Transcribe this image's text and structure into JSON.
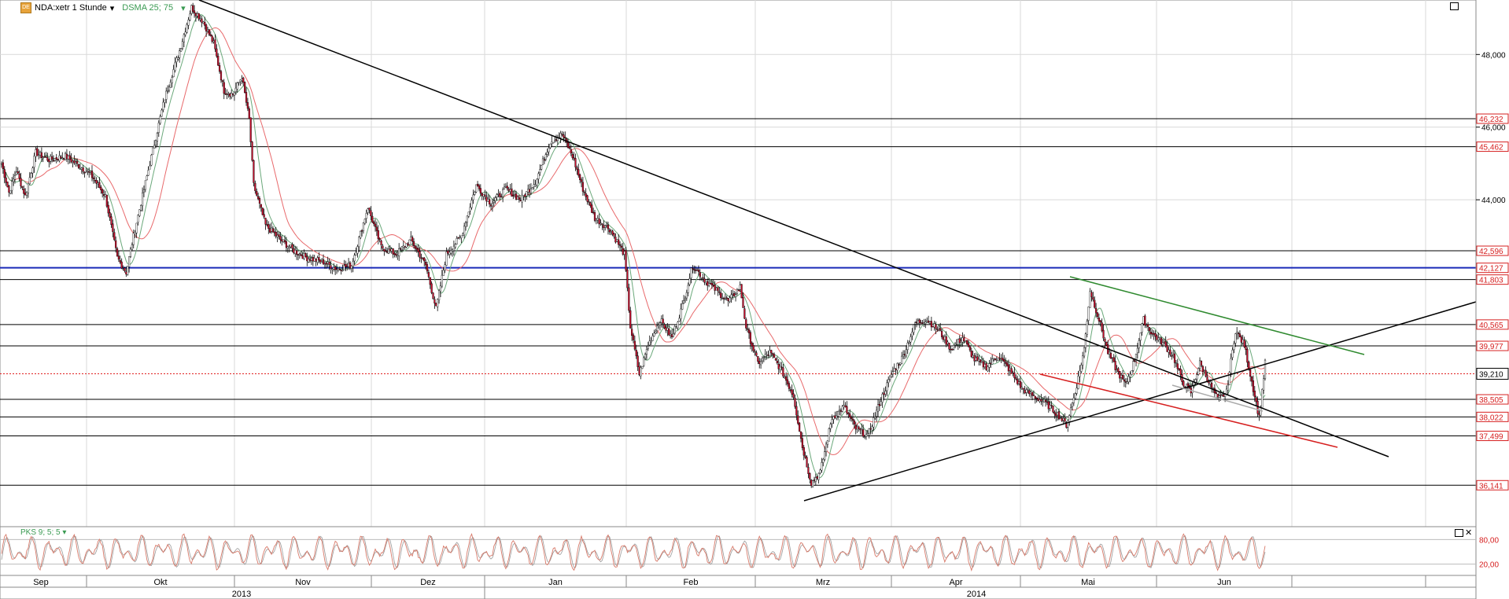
{
  "header": {
    "logo_text": "DE",
    "symbol": "NDA:xetr 1 Stunde",
    "indicator": "DSMA 25; 75",
    "sub_indicator": "PKS 9; 5; 5"
  },
  "colors": {
    "up_candle": "#ffffff",
    "down_candle": "#c8102e",
    "sma_fast": "#6aa87a",
    "sma_slow": "#e8696b",
    "oscillator": "#d87a6a",
    "blue_line": "#1a2ab8",
    "green_trend": "#2f8a2f",
    "red_trend": "#d62020",
    "current_line": "#e02020"
  },
  "chart_data": {
    "type": "candlestick",
    "ylim": [
      35000,
      49500
    ],
    "y_ticks": [
      {
        "value": 48000,
        "label": "48,000"
      },
      {
        "value": 46000,
        "label": "46,000"
      },
      {
        "value": 44000,
        "label": "44,000"
      }
    ],
    "horizontal_levels": [
      {
        "value": 46232,
        "label": "46,232",
        "color": "#000000"
      },
      {
        "value": 45462,
        "label": "45,462",
        "color": "#000000"
      },
      {
        "value": 42596,
        "label": "42,596",
        "color": "#000000"
      },
      {
        "value": 42127,
        "label": "42,127",
        "color": "#1a2ab8"
      },
      {
        "value": 41803,
        "label": "41,803",
        "color": "#000000"
      },
      {
        "value": 40565,
        "label": "40,565",
        "color": "#000000"
      },
      {
        "value": 39977,
        "label": "39,977",
        "color": "#000000"
      },
      {
        "value": 38505,
        "label": "38,505",
        "color": "#000000"
      },
      {
        "value": 38022,
        "label": "38,022",
        "color": "#000000"
      },
      {
        "value": 37499,
        "label": "37,499",
        "color": "#000000"
      },
      {
        "value": 36141,
        "label": "36,141",
        "color": "#000000"
      }
    ],
    "current_price": {
      "value": 39210,
      "label": "39,210"
    },
    "months": [
      "Sep",
      "Okt",
      "Nov",
      "Dez",
      "Jan",
      "Feb",
      "Mrz",
      "Apr",
      "Mai",
      "Jun"
    ],
    "years": [
      "2013",
      "2014"
    ],
    "key_prices": [
      {
        "t": 0,
        "v": 45000
      },
      {
        "t": 5,
        "v": 44200
      },
      {
        "t": 10,
        "v": 44800
      },
      {
        "t": 16,
        "v": 44100
      },
      {
        "t": 23,
        "v": 45300
      },
      {
        "t": 32,
        "v": 45100
      },
      {
        "t": 43,
        "v": 45200
      },
      {
        "t": 50,
        "v": 45000
      },
      {
        "t": 60,
        "v": 44700
      },
      {
        "t": 70,
        "v": 44100
      },
      {
        "t": 78,
        "v": 42400
      },
      {
        "t": 84,
        "v": 42000
      },
      {
        "t": 90,
        "v": 43200
      },
      {
        "t": 100,
        "v": 45000
      },
      {
        "t": 110,
        "v": 46800
      },
      {
        "t": 120,
        "v": 48100
      },
      {
        "t": 128,
        "v": 49300
      },
      {
        "t": 136,
        "v": 48900
      },
      {
        "t": 143,
        "v": 48300
      },
      {
        "t": 150,
        "v": 47000
      },
      {
        "t": 156,
        "v": 46900
      },
      {
        "t": 162,
        "v": 47400
      },
      {
        "t": 167,
        "v": 46200
      },
      {
        "t": 170,
        "v": 44400
      },
      {
        "t": 178,
        "v": 43300
      },
      {
        "t": 188,
        "v": 42900
      },
      {
        "t": 197,
        "v": 42600
      },
      {
        "t": 206,
        "v": 42400
      },
      {
        "t": 216,
        "v": 42300
      },
      {
        "t": 226,
        "v": 42100
      },
      {
        "t": 236,
        "v": 42200
      },
      {
        "t": 247,
        "v": 43800
      },
      {
        "t": 256,
        "v": 42700
      },
      {
        "t": 266,
        "v": 42500
      },
      {
        "t": 276,
        "v": 42900
      },
      {
        "t": 286,
        "v": 42200
      },
      {
        "t": 293,
        "v": 41000
      },
      {
        "t": 300,
        "v": 42500
      },
      {
        "t": 310,
        "v": 43000
      },
      {
        "t": 320,
        "v": 44400
      },
      {
        "t": 330,
        "v": 43900
      },
      {
        "t": 340,
        "v": 44300
      },
      {
        "t": 350,
        "v": 44000
      },
      {
        "t": 360,
        "v": 44500
      },
      {
        "t": 370,
        "v": 45600
      },
      {
        "t": 378,
        "v": 45800
      },
      {
        "t": 385,
        "v": 45200
      },
      {
        "t": 392,
        "v": 44300
      },
      {
        "t": 400,
        "v": 43500
      },
      {
        "t": 410,
        "v": 43200
      },
      {
        "t": 420,
        "v": 42500
      },
      {
        "t": 424,
        "v": 40500
      },
      {
        "t": 430,
        "v": 39200
      },
      {
        "t": 436,
        "v": 40000
      },
      {
        "t": 444,
        "v": 40700
      },
      {
        "t": 452,
        "v": 40200
      },
      {
        "t": 460,
        "v": 41200
      },
      {
        "t": 466,
        "v": 42200
      },
      {
        "t": 474,
        "v": 41800
      },
      {
        "t": 482,
        "v": 41500
      },
      {
        "t": 490,
        "v": 41200
      },
      {
        "t": 498,
        "v": 41600
      },
      {
        "t": 502,
        "v": 40500
      },
      {
        "t": 510,
        "v": 39500
      },
      {
        "t": 518,
        "v": 39800
      },
      {
        "t": 526,
        "v": 39300
      },
      {
        "t": 534,
        "v": 38600
      },
      {
        "t": 540,
        "v": 37200
      },
      {
        "t": 546,
        "v": 36200
      },
      {
        "t": 552,
        "v": 36500
      },
      {
        "t": 560,
        "v": 38000
      },
      {
        "t": 568,
        "v": 38300
      },
      {
        "t": 576,
        "v": 37700
      },
      {
        "t": 584,
        "v": 37500
      },
      {
        "t": 592,
        "v": 38400
      },
      {
        "t": 600,
        "v": 39200
      },
      {
        "t": 608,
        "v": 39700
      },
      {
        "t": 616,
        "v": 40600
      },
      {
        "t": 624,
        "v": 40700
      },
      {
        "t": 632,
        "v": 40400
      },
      {
        "t": 640,
        "v": 39900
      },
      {
        "t": 648,
        "v": 40200
      },
      {
        "t": 656,
        "v": 39600
      },
      {
        "t": 664,
        "v": 39400
      },
      {
        "t": 672,
        "v": 39700
      },
      {
        "t": 680,
        "v": 39300
      },
      {
        "t": 688,
        "v": 38800
      },
      {
        "t": 696,
        "v": 38600
      },
      {
        "t": 704,
        "v": 38400
      },
      {
        "t": 712,
        "v": 38100
      },
      {
        "t": 718,
        "v": 37800
      },
      {
        "t": 724,
        "v": 38700
      },
      {
        "t": 730,
        "v": 39900
      },
      {
        "t": 734,
        "v": 41500
      },
      {
        "t": 740,
        "v": 40700
      },
      {
        "t": 746,
        "v": 39800
      },
      {
        "t": 752,
        "v": 39300
      },
      {
        "t": 758,
        "v": 38900
      },
      {
        "t": 764,
        "v": 39600
      },
      {
        "t": 770,
        "v": 40700
      },
      {
        "t": 776,
        "v": 40300
      },
      {
        "t": 782,
        "v": 40100
      },
      {
        "t": 790,
        "v": 39700
      },
      {
        "t": 796,
        "v": 39000
      },
      {
        "t": 802,
        "v": 38700
      },
      {
        "t": 808,
        "v": 39500
      },
      {
        "t": 814,
        "v": 39000
      },
      {
        "t": 820,
        "v": 38500
      },
      {
        "t": 826,
        "v": 38700
      },
      {
        "t": 832,
        "v": 40400
      },
      {
        "t": 838,
        "v": 40000
      },
      {
        "t": 844,
        "v": 38800
      },
      {
        "t": 848,
        "v": 38000
      },
      {
        "t": 852,
        "v": 39500
      }
    ],
    "oscillator_levels": [
      {
        "value": 80,
        "label": "80,00"
      },
      {
        "value": 20,
        "label": "20,00"
      }
    ]
  }
}
